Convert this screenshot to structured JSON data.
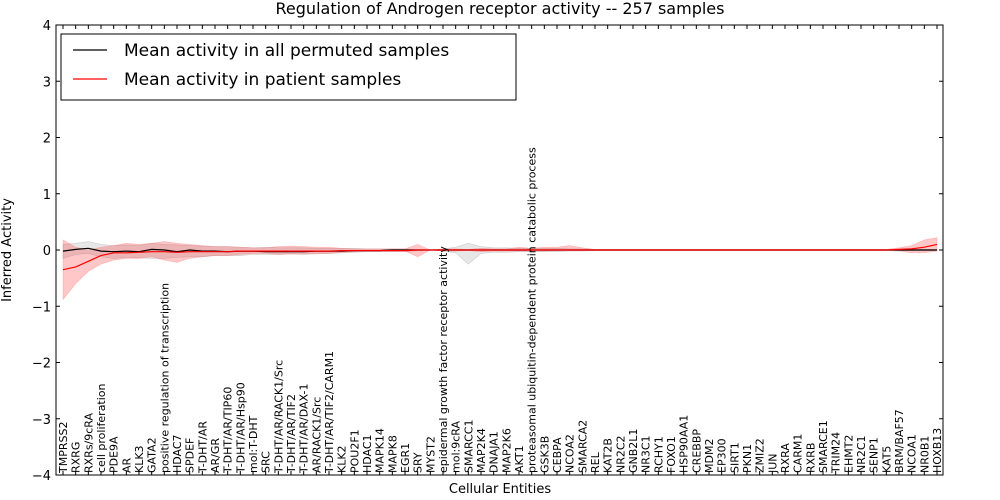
{
  "chart_data": {
    "type": "line",
    "title": "Regulation of Androgen receptor activity -- 257 samples",
    "xlabel": "Cellular Entities",
    "ylabel": "Inferred Activity",
    "ylim": [
      -4,
      4
    ],
    "yticks": [
      -4,
      -3,
      -2,
      -1,
      0,
      1,
      2,
      3,
      4
    ],
    "legend_position": "top-left",
    "categories": [
      "TMPRSS2",
      "RXRG",
      "RXRs/9cRA",
      "cell proliferation",
      "PDE9A",
      "AR",
      "KLK3",
      "GATA2",
      "positive regulation of transcription",
      "HDAC7",
      "SPDEF",
      "T-DHT/AR",
      "AR/GR",
      "T-DHT/AR/TIP60",
      "T-DHT/AR/Hsp90",
      "mol:T-DHT",
      "SRC",
      "T-DHT/AR/RACK1/Src",
      "T-DHT/AR/TIF2",
      "T-DHT/AR/DAX-1",
      "AR/RACK1/Src",
      "T-DHT/AR/TIF2/CARM1",
      "KLK2",
      "POU2F1",
      "HDAC1",
      "MAPK14",
      "MAPK8",
      "EGR1",
      "SRY",
      "MYST2",
      "epidermal growth factor receptor activity",
      "mol:9cRA",
      "SMARCC1",
      "MAP2K4",
      "DNAJA1",
      "MAP2K6",
      "AKT1",
      "proteasomal ubiquitin-dependent protein catabolic process",
      "GSK3B",
      "CEBPA",
      "NCOA2",
      "SMARCA2",
      "REL",
      "KAT2B",
      "NR2C2",
      "GNB2L1",
      "NR3C1",
      "RCHY1",
      "FOXO1",
      "HSP90AA1",
      "CREBBP",
      "MDM2",
      "EP300",
      "SIRT1",
      "PKN1",
      "ZMIZ2",
      "JUN",
      "RXRA",
      "CARM1",
      "RXRB",
      "SMARCE1",
      "TRIM24",
      "EHMT2",
      "NR2C1",
      "SENP1",
      "KAT5",
      "BRM/BAF57",
      "NCOA1",
      "NR0B1",
      "HOXB13"
    ],
    "series": [
      {
        "name": "Mean activity in all permuted samples",
        "color": "#000000",
        "values": [
          -0.02,
          0.01,
          0.03,
          -0.02,
          -0.03,
          -0.02,
          -0.03,
          0.01,
          0.0,
          -0.03,
          0.0,
          -0.02,
          -0.02,
          -0.03,
          -0.02,
          -0.02,
          -0.03,
          -0.03,
          -0.03,
          -0.03,
          -0.02,
          -0.02,
          -0.02,
          -0.01,
          -0.01,
          -0.01,
          0.0,
          0.0,
          0.0,
          0.0,
          0.0,
          0.0,
          0.0,
          0.0,
          0.0,
          0.0,
          0.0,
          0.0,
          0.0,
          0.0,
          0.0,
          0.0,
          0.0,
          0.0,
          0.0,
          0.0,
          0.0,
          0.0,
          0.0,
          0.0,
          0.0,
          0.0,
          0.0,
          0.0,
          0.0,
          0.0,
          0.0,
          0.0,
          0.0,
          0.0,
          0.0,
          0.0,
          0.0,
          0.0,
          0.0,
          0.0,
          0.0,
          0.0,
          0.0,
          0.0
        ],
        "band_low": [
          -0.15,
          -0.08,
          -0.06,
          -0.12,
          -0.15,
          -0.13,
          -0.14,
          -0.15,
          -0.15,
          -0.13,
          -0.12,
          -0.12,
          -0.1,
          -0.1,
          -0.1,
          -0.08,
          -0.08,
          -0.08,
          -0.07,
          -0.08,
          -0.07,
          -0.06,
          -0.05,
          -0.04,
          -0.03,
          -0.03,
          -0.03,
          -0.03,
          -0.01,
          0.0,
          -0.02,
          -0.05,
          -0.25,
          -0.06,
          -0.04,
          -0.04,
          -0.03,
          -0.03,
          -0.03,
          -0.03,
          -0.02,
          -0.02,
          -0.01,
          -0.01,
          -0.01,
          -0.01,
          -0.01,
          -0.01,
          -0.01,
          -0.01,
          -0.01,
          -0.01,
          -0.01,
          -0.01,
          -0.01,
          -0.01,
          -0.01,
          -0.01,
          -0.01,
          -0.01,
          -0.01,
          -0.01,
          -0.01,
          -0.01,
          -0.01,
          -0.01,
          -0.01,
          -0.01,
          -0.01,
          -0.01
        ],
        "band_high": [
          0.1,
          0.12,
          0.15,
          0.1,
          0.08,
          0.09,
          0.08,
          0.12,
          0.1,
          0.09,
          0.08,
          0.07,
          0.06,
          0.06,
          0.05,
          0.04,
          0.05,
          0.04,
          0.04,
          0.04,
          0.03,
          0.03,
          0.03,
          0.03,
          0.02,
          0.02,
          0.02,
          0.02,
          0.01,
          0.0,
          0.02,
          0.05,
          0.12,
          0.06,
          0.04,
          0.04,
          0.03,
          0.03,
          0.03,
          0.03,
          0.02,
          0.02,
          0.01,
          0.01,
          0.01,
          0.01,
          0.01,
          0.01,
          0.01,
          0.01,
          0.01,
          0.01,
          0.01,
          0.01,
          0.01,
          0.01,
          0.01,
          0.01,
          0.01,
          0.01,
          0.01,
          0.01,
          0.01,
          0.01,
          0.01,
          0.01,
          0.01,
          0.01,
          0.01,
          0.01
        ]
      },
      {
        "name": "Mean activity in patient samples",
        "color": "#ff0000",
        "values": [
          -0.35,
          -0.3,
          -0.2,
          -0.1,
          -0.05,
          -0.05,
          -0.04,
          -0.03,
          -0.03,
          -0.04,
          -0.03,
          -0.03,
          -0.03,
          -0.03,
          -0.02,
          -0.02,
          -0.02,
          -0.02,
          -0.02,
          -0.02,
          -0.02,
          -0.02,
          -0.01,
          -0.01,
          -0.01,
          -0.01,
          -0.01,
          -0.01,
          0.0,
          0.0,
          0.0,
          0.0,
          0.0,
          0.0,
          0.0,
          0.0,
          0.0,
          0.0,
          0.0,
          0.0,
          0.0,
          0.0,
          0.0,
          0.0,
          0.0,
          0.0,
          0.0,
          0.0,
          0.0,
          0.0,
          0.0,
          0.0,
          0.0,
          0.0,
          0.0,
          0.0,
          0.0,
          0.0,
          0.0,
          0.0,
          0.0,
          0.0,
          0.0,
          0.0,
          0.0,
          0.0,
          0.01,
          0.02,
          0.05,
          0.1
        ],
        "band_low": [
          -0.88,
          -0.6,
          -0.38,
          -0.25,
          -0.18,
          -0.15,
          -0.15,
          -0.12,
          -0.18,
          -0.22,
          -0.15,
          -0.12,
          -0.1,
          -0.1,
          -0.08,
          -0.06,
          -0.06,
          -0.08,
          -0.07,
          -0.07,
          -0.06,
          -0.06,
          -0.04,
          -0.03,
          -0.02,
          -0.02,
          -0.02,
          -0.02,
          -0.12,
          0.0,
          -0.02,
          -0.02,
          -0.01,
          -0.03,
          -0.02,
          -0.02,
          -0.02,
          -0.02,
          -0.02,
          -0.01,
          -0.01,
          -0.01,
          -0.01,
          -0.01,
          -0.01,
          -0.01,
          -0.01,
          -0.01,
          -0.01,
          -0.01,
          -0.01,
          -0.01,
          -0.01,
          -0.01,
          -0.01,
          -0.01,
          -0.01,
          -0.01,
          -0.01,
          -0.01,
          -0.01,
          -0.01,
          -0.01,
          -0.01,
          -0.01,
          -0.01,
          -0.02,
          -0.05,
          -0.05,
          -0.02
        ],
        "band_high": [
          0.18,
          0.05,
          0.0,
          0.05,
          0.08,
          0.12,
          0.1,
          0.12,
          0.15,
          0.12,
          0.1,
          0.08,
          0.06,
          0.06,
          0.05,
          0.04,
          0.04,
          0.06,
          0.07,
          0.06,
          0.05,
          0.05,
          0.03,
          0.02,
          0.02,
          0.02,
          0.02,
          0.02,
          0.1,
          0.0,
          0.02,
          0.02,
          0.01,
          0.03,
          0.02,
          0.02,
          0.05,
          0.03,
          0.05,
          0.05,
          0.08,
          0.04,
          0.01,
          0.01,
          0.01,
          0.01,
          0.01,
          0.01,
          0.01,
          0.01,
          0.01,
          0.01,
          0.01,
          0.01,
          0.01,
          0.01,
          0.01,
          0.01,
          0.01,
          0.01,
          0.01,
          0.01,
          0.01,
          0.01,
          0.01,
          0.01,
          0.04,
          0.08,
          0.18,
          0.22
        ]
      }
    ],
    "long_labels": [
      "positive regulation of transcription",
      "epidermal growth factor receptor activity",
      "proteasomal ubiquitin-dependent protein catabolic process"
    ]
  }
}
